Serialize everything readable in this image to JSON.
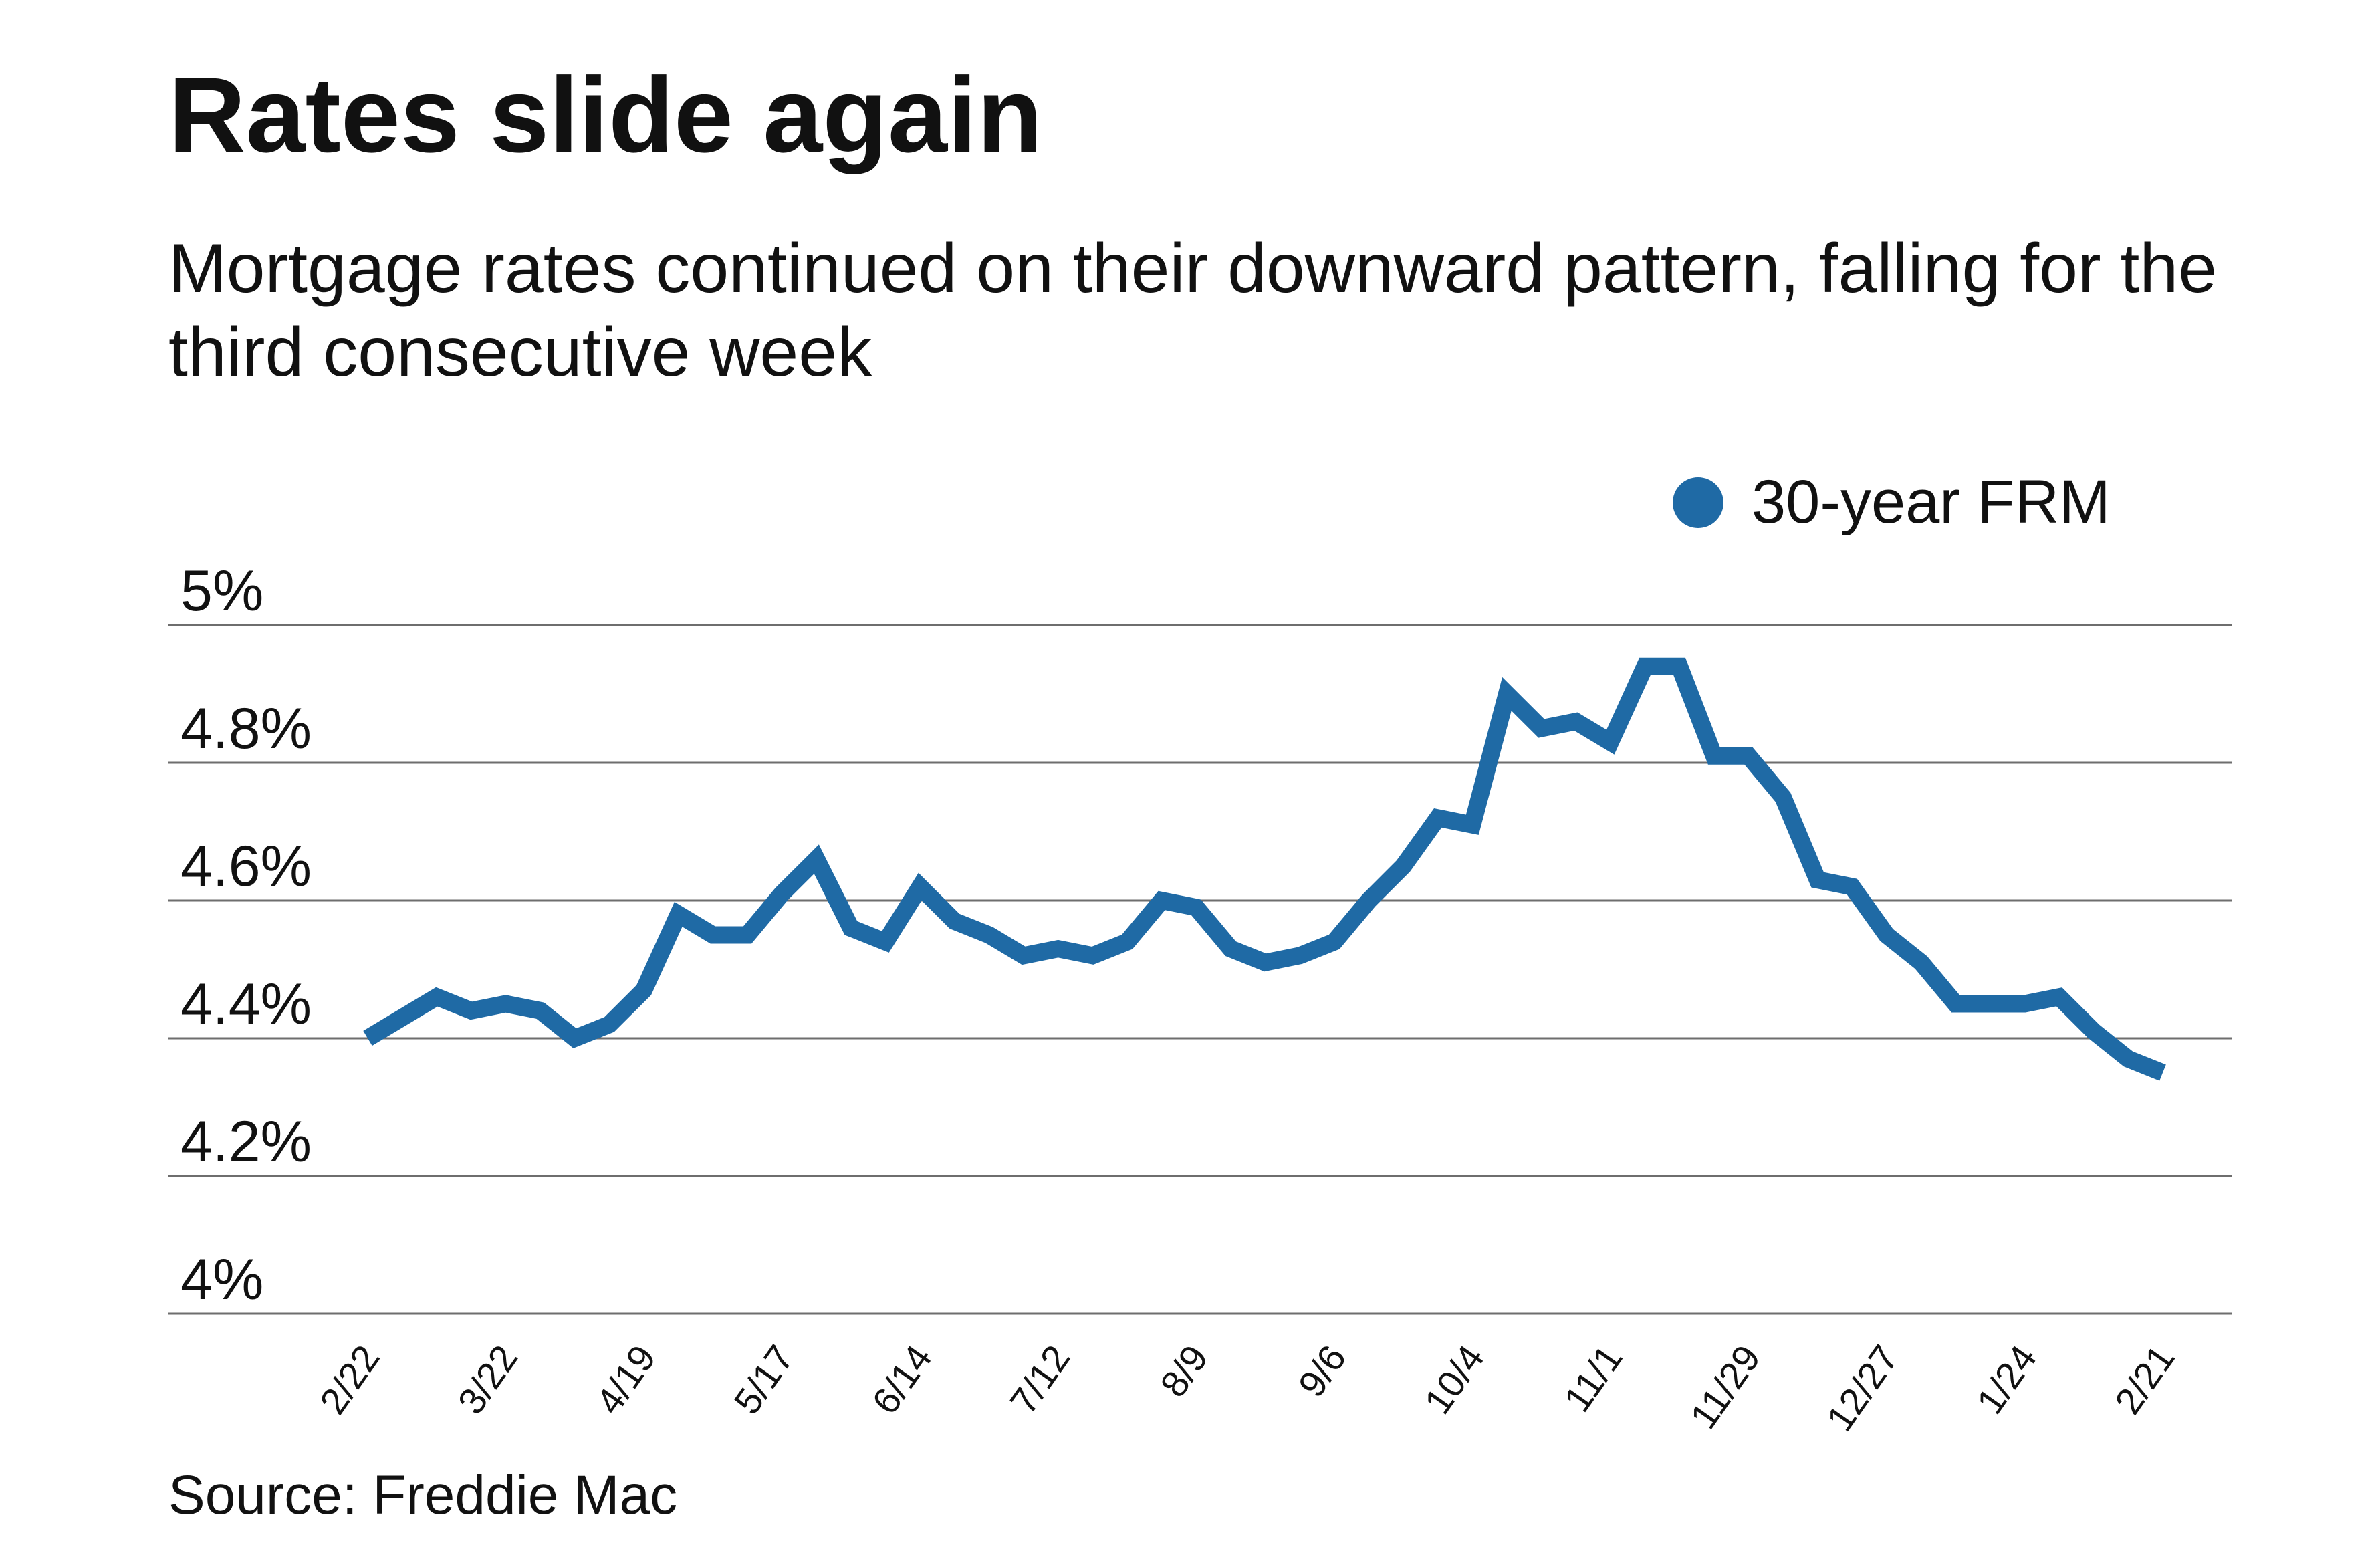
{
  "title": "Rates slide again",
  "subtitle": "Mortgage rates continued on their downward pattern, falling for the third consecutive week",
  "source": "Source: Freddie Mac",
  "colors": {
    "series": "#1f6aa5",
    "grid": "#6e6e6e",
    "text": "#111111"
  },
  "chart_data": {
    "type": "line",
    "title": "Rates slide again",
    "xlabel": "",
    "ylabel": "",
    "ylim": [
      4.0,
      5.0
    ],
    "grid": true,
    "legend_position": "top-right",
    "y_ticks": [
      {
        "value": 5.0,
        "label": "5%"
      },
      {
        "value": 4.8,
        "label": "4.8%"
      },
      {
        "value": 4.6,
        "label": "4.6%"
      },
      {
        "value": 4.4,
        "label": "4.4%"
      },
      {
        "value": 4.2,
        "label": "4.2%"
      },
      {
        "value": 4.0,
        "label": "4%"
      }
    ],
    "x_ticks": [
      {
        "index": 0,
        "label": "2/22"
      },
      {
        "index": 4,
        "label": "3/22"
      },
      {
        "index": 8,
        "label": "4/19"
      },
      {
        "index": 12,
        "label": "5/17"
      },
      {
        "index": 16,
        "label": "6/14"
      },
      {
        "index": 20,
        "label": "7/12"
      },
      {
        "index": 24,
        "label": "8/9"
      },
      {
        "index": 28,
        "label": "9/6"
      },
      {
        "index": 32,
        "label": "10/4"
      },
      {
        "index": 36,
        "label": "11/1"
      },
      {
        "index": 40,
        "label": "11/29"
      },
      {
        "index": 44,
        "label": "12/27"
      },
      {
        "index": 48,
        "label": "1/24"
      },
      {
        "index": 52,
        "label": "2/21"
      }
    ],
    "series": [
      {
        "name": "30-year FRM",
        "color": "#1f6aa5",
        "values": [
          4.4,
          4.43,
          4.46,
          4.44,
          4.45,
          4.44,
          4.4,
          4.42,
          4.47,
          4.58,
          4.55,
          4.55,
          4.61,
          4.66,
          4.56,
          4.54,
          4.62,
          4.57,
          4.55,
          4.52,
          4.53,
          4.52,
          4.54,
          4.6,
          4.59,
          4.53,
          4.51,
          4.52,
          4.54,
          4.6,
          4.65,
          4.72,
          4.71,
          4.9,
          4.85,
          4.86,
          4.83,
          4.94,
          4.94,
          4.81,
          4.81,
          4.75,
          4.63,
          4.62,
          4.55,
          4.51,
          4.45,
          4.45,
          4.45,
          4.46,
          4.41,
          4.37,
          4.35
        ]
      }
    ]
  }
}
